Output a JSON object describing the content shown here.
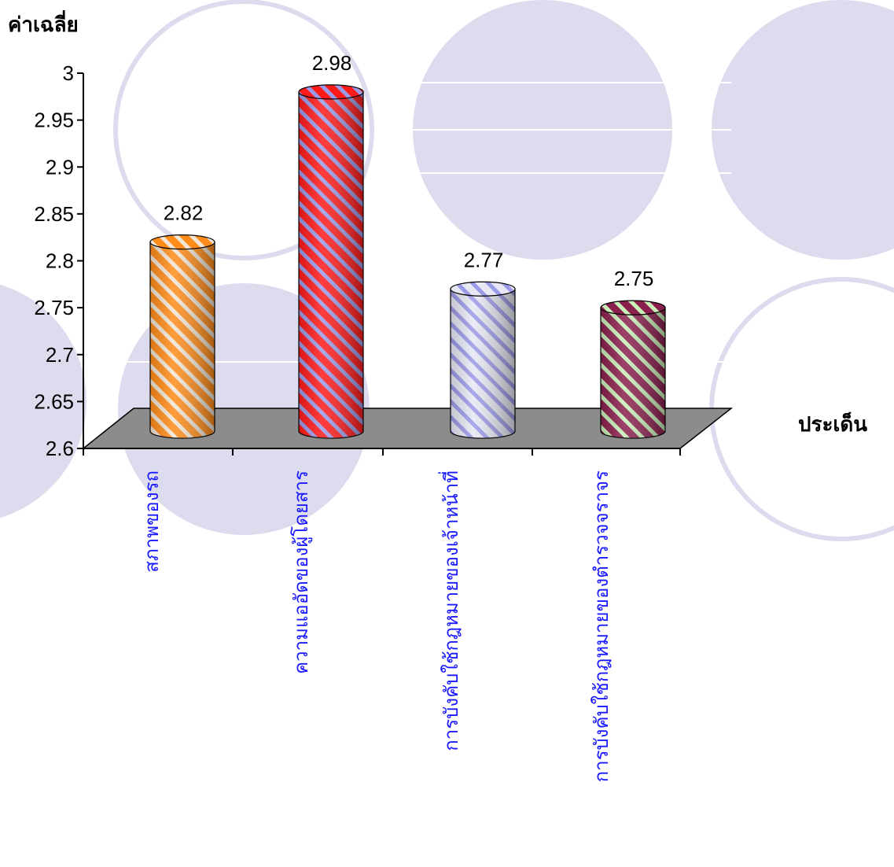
{
  "chart_data": {
    "type": "bar",
    "title": "",
    "ylabel": "ค่าเฉลี่ย",
    "xlabel": "ประเด็น",
    "categories": [
      "สภาพของรถ",
      "ความแออัดของผู้โดยสาร",
      "การบังคับใช้กฎหมายของเจ้าหน้าที่",
      "การบังคับใช้กฎหมายของตำรวจจราจร"
    ],
    "values": [
      2.82,
      2.98,
      2.77,
      2.75
    ],
    "data_labels": [
      "2.82",
      "2.98",
      "2.77",
      "2.75"
    ],
    "ylim": [
      2.6,
      3
    ],
    "yticks": [
      "2.6",
      "2.65",
      "2.7",
      "2.75",
      "2.8",
      "2.85",
      "2.9",
      "2.95",
      "3"
    ],
    "bar_style": "3d-cylinder-striped",
    "bar_colors": [
      {
        "base": "#ff8c1a",
        "stripe": "#f2e6d6"
      },
      {
        "base": "#ff1a1a",
        "stripe": "#9a9ae8"
      },
      {
        "base": "#e8e8f4",
        "stripe": "#9a9ae8"
      },
      {
        "base": "#8a1f4d",
        "stripe": "#c8f0b8"
      }
    ],
    "floor_color": "#8c8c8c",
    "category_label_color": "#1a1aff",
    "background_circle_color": "#dcdcee",
    "grid": false,
    "legend": false
  }
}
